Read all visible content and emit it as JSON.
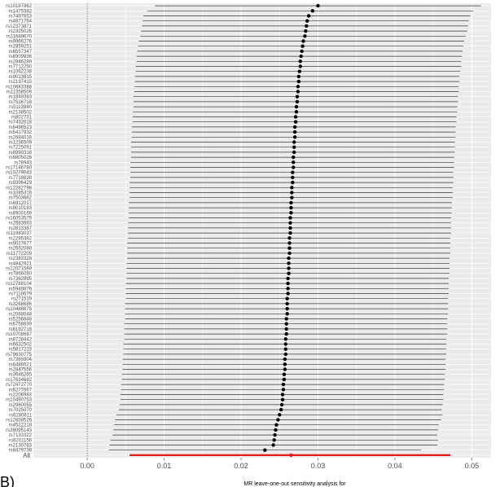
{
  "chart_data": {
    "type": "forest",
    "xlabel": "MR leave-one-out sensitivity analysis for",
    "panel_tag": "B)",
    "xlim": [
      -0.007,
      0.0525
    ],
    "xticks": [
      0.0,
      0.01,
      0.02,
      0.03,
      0.04,
      0.05
    ],
    "xtick_labels": [
      "0.00",
      "0.01",
      "0.02",
      "0.03",
      "0.04",
      "0.05"
    ],
    "reference_line_x": 0,
    "grid": true,
    "point_color": "#000000",
    "line_color": "#333333",
    "overall_color": "#e41a1c",
    "snps": [
      {
        "label": "rs10197862",
        "est": 0.03,
        "lo": 0.0088,
        "hi": 0.0512
      },
      {
        "label": "rs1475382",
        "est": 0.0293,
        "lo": 0.0078,
        "hi": 0.0502
      },
      {
        "label": "rs7497653",
        "est": 0.0288,
        "lo": 0.0073,
        "hi": 0.0498
      },
      {
        "label": "rs4871764",
        "est": 0.0286,
        "lo": 0.0072,
        "hi": 0.0496
      },
      {
        "label": "rs12373871",
        "est": 0.0285,
        "lo": 0.0071,
        "hi": 0.0495
      },
      {
        "label": "rs2325026",
        "est": 0.0284,
        "lo": 0.007,
        "hi": 0.0494
      },
      {
        "label": "rs11689670",
        "est": 0.0283,
        "lo": 0.0069,
        "hi": 0.0492
      },
      {
        "label": "rs9966276",
        "est": 0.0281,
        "lo": 0.0067,
        "hi": 0.049
      },
      {
        "label": "rs2859251",
        "est": 0.028,
        "lo": 0.0066,
        "hi": 0.0489
      },
      {
        "label": "rs6557347",
        "est": 0.0279,
        "lo": 0.0065,
        "hi": 0.0488
      },
      {
        "label": "rs6909936",
        "est": 0.0278,
        "lo": 0.0064,
        "hi": 0.0487
      },
      {
        "label": "rs2846289",
        "est": 0.0277,
        "lo": 0.0064,
        "hi": 0.0486
      },
      {
        "label": "rs7712250",
        "est": 0.0277,
        "lo": 0.0063,
        "hi": 0.0486
      },
      {
        "label": "rs1062238",
        "est": 0.0276,
        "lo": 0.0063,
        "hi": 0.0485
      },
      {
        "label": "rs9013815",
        "est": 0.0275,
        "lo": 0.0062,
        "hi": 0.0484
      },
      {
        "label": "rs2197415",
        "est": 0.0275,
        "lo": 0.0062,
        "hi": 0.0484
      },
      {
        "label": "rs10683388",
        "est": 0.0274,
        "lo": 0.0061,
        "hi": 0.0483
      },
      {
        "label": "rs11358509",
        "est": 0.0274,
        "lo": 0.0061,
        "hi": 0.0483
      },
      {
        "label": "rs1849383",
        "est": 0.0273,
        "lo": 0.006,
        "hi": 0.0482
      },
      {
        "label": "rs7516718",
        "est": 0.0273,
        "lo": 0.006,
        "hi": 0.0482
      },
      {
        "label": "rs5113980",
        "est": 0.0272,
        "lo": 0.006,
        "hi": 0.0481
      },
      {
        "label": "rs2138502",
        "est": 0.0272,
        "lo": 0.0059,
        "hi": 0.0481
      },
      {
        "label": "rs802731",
        "est": 0.0271,
        "lo": 0.0059,
        "hi": 0.048
      },
      {
        "label": "rs7432618",
        "est": 0.0271,
        "lo": 0.0059,
        "hi": 0.048
      },
      {
        "label": "rs8498523",
        "est": 0.027,
        "lo": 0.0058,
        "hi": 0.0479
      },
      {
        "label": "rs5417932",
        "est": 0.027,
        "lo": 0.0058,
        "hi": 0.0479
      },
      {
        "label": "rs2684018",
        "est": 0.027,
        "lo": 0.0058,
        "hi": 0.0479
      },
      {
        "label": "rs1236509",
        "est": 0.0269,
        "lo": 0.0057,
        "hi": 0.0478
      },
      {
        "label": "rs7225091",
        "est": 0.0269,
        "lo": 0.0057,
        "hi": 0.0478
      },
      {
        "label": "rs8990318",
        "est": 0.0269,
        "lo": 0.0057,
        "hi": 0.0478
      },
      {
        "label": "rs6805026",
        "est": 0.0268,
        "lo": 0.0057,
        "hi": 0.0477
      },
      {
        "label": "rs78943",
        "est": 0.0268,
        "lo": 0.0056,
        "hi": 0.0477
      },
      {
        "label": "rs17146780",
        "est": 0.0268,
        "lo": 0.0056,
        "hi": 0.0477
      },
      {
        "label": "rs10279043",
        "est": 0.0267,
        "lo": 0.0056,
        "hi": 0.0476
      },
      {
        "label": "rs7718838",
        "est": 0.0267,
        "lo": 0.0056,
        "hi": 0.0476
      },
      {
        "label": "rs9396429",
        "est": 0.0267,
        "lo": 0.0055,
        "hi": 0.0476
      },
      {
        "label": "rs12282798",
        "est": 0.0266,
        "lo": 0.0055,
        "hi": 0.0475
      },
      {
        "label": "rs1085316",
        "est": 0.0266,
        "lo": 0.0055,
        "hi": 0.0475
      },
      {
        "label": "rs7503662",
        "est": 0.0266,
        "lo": 0.0055,
        "hi": 0.0475
      },
      {
        "label": "rs6912017",
        "est": 0.0265,
        "lo": 0.0054,
        "hi": 0.0474
      },
      {
        "label": "rs9010183",
        "est": 0.0265,
        "lo": 0.0054,
        "hi": 0.0474
      },
      {
        "label": "rs8900169",
        "est": 0.0265,
        "lo": 0.0054,
        "hi": 0.0474
      },
      {
        "label": "rs16053575",
        "est": 0.0264,
        "lo": 0.0054,
        "hi": 0.0473
      },
      {
        "label": "rs2663663",
        "est": 0.0264,
        "lo": 0.0053,
        "hi": 0.0473
      },
      {
        "label": "rs2813387",
        "est": 0.0264,
        "lo": 0.0053,
        "hi": 0.0473
      },
      {
        "label": "rs11983037",
        "est": 0.0264,
        "lo": 0.0053,
        "hi": 0.0473
      },
      {
        "label": "rs2285382",
        "est": 0.0263,
        "lo": 0.0053,
        "hi": 0.0472
      },
      {
        "label": "rs9027677",
        "est": 0.0263,
        "lo": 0.0052,
        "hi": 0.0472
      },
      {
        "label": "rs2652088",
        "est": 0.0263,
        "lo": 0.0052,
        "hi": 0.0472
      },
      {
        "label": "rs11772209",
        "est": 0.0263,
        "lo": 0.0052,
        "hi": 0.0472
      },
      {
        "label": "rs2383328",
        "est": 0.0262,
        "lo": 0.0052,
        "hi": 0.0471
      },
      {
        "label": "rs4842921",
        "est": 0.0262,
        "lo": 0.0051,
        "hi": 0.0471
      },
      {
        "label": "rs12071569",
        "est": 0.0262,
        "lo": 0.0051,
        "hi": 0.0471
      },
      {
        "label": "rs7866060",
        "est": 0.0262,
        "lo": 0.0051,
        "hi": 0.0471
      },
      {
        "label": "rs7362895",
        "est": 0.0261,
        "lo": 0.0051,
        "hi": 0.047
      },
      {
        "label": "rs12788104",
        "est": 0.0261,
        "lo": 0.005,
        "hi": 0.047
      },
      {
        "label": "rs5949876",
        "est": 0.0261,
        "lo": 0.005,
        "hi": 0.047
      },
      {
        "label": "rs7118679",
        "est": 0.0261,
        "lo": 0.005,
        "hi": 0.047
      },
      {
        "label": "rs271519",
        "est": 0.026,
        "lo": 0.005,
        "hi": 0.0469
      },
      {
        "label": "rs3268686",
        "est": 0.026,
        "lo": 0.0049,
        "hi": 0.0469
      },
      {
        "label": "rs10488678",
        "est": 0.026,
        "lo": 0.0049,
        "hi": 0.0469
      },
      {
        "label": "rs2068048",
        "est": 0.026,
        "lo": 0.0049,
        "hi": 0.0469
      },
      {
        "label": "rs5256848",
        "est": 0.0259,
        "lo": 0.0049,
        "hi": 0.0468
      },
      {
        "label": "rs6758639",
        "est": 0.0259,
        "lo": 0.0048,
        "hi": 0.0468
      },
      {
        "label": "rs6192718",
        "est": 0.0259,
        "lo": 0.0048,
        "hi": 0.0468
      },
      {
        "label": "rs10708687",
        "est": 0.0259,
        "lo": 0.0048,
        "hi": 0.0468
      },
      {
        "label": "rs8728442",
        "est": 0.0258,
        "lo": 0.0048,
        "hi": 0.0467
      },
      {
        "label": "rs6632502",
        "est": 0.0258,
        "lo": 0.0047,
        "hi": 0.0467
      },
      {
        "label": "rs5817223",
        "est": 0.0258,
        "lo": 0.0047,
        "hi": 0.0467
      },
      {
        "label": "rs79630775",
        "est": 0.0258,
        "lo": 0.0047,
        "hi": 0.0467
      },
      {
        "label": "rs7365904",
        "est": 0.0257,
        "lo": 0.0046,
        "hi": 0.0466
      },
      {
        "label": "rs6486021",
        "est": 0.0257,
        "lo": 0.0046,
        "hi": 0.0466
      },
      {
        "label": "rs2847556",
        "est": 0.0257,
        "lo": 0.0046,
        "hi": 0.0466
      },
      {
        "label": "rs3646265",
        "est": 0.0256,
        "lo": 0.0045,
        "hi": 0.0465
      },
      {
        "label": "rs17634682",
        "est": 0.0256,
        "lo": 0.0045,
        "hi": 0.0465
      },
      {
        "label": "rs72472770",
        "est": 0.0255,
        "lo": 0.0044,
        "hi": 0.0464
      },
      {
        "label": "rs6277667",
        "est": 0.0255,
        "lo": 0.0044,
        "hi": 0.0464
      },
      {
        "label": "rs2206983",
        "est": 0.0254,
        "lo": 0.0043,
        "hi": 0.0463
      },
      {
        "label": "rs10490753",
        "est": 0.0254,
        "lo": 0.0043,
        "hi": 0.0463
      },
      {
        "label": "rs2960055",
        "est": 0.0253,
        "lo": 0.0042,
        "hi": 0.0462
      },
      {
        "label": "rs7025070",
        "est": 0.0252,
        "lo": 0.0041,
        "hi": 0.0461
      },
      {
        "label": "rs6280611",
        "est": 0.025,
        "lo": 0.0038,
        "hi": 0.0462
      },
      {
        "label": "rs12838526",
        "est": 0.0248,
        "lo": 0.0036,
        "hi": 0.046
      },
      {
        "label": "rs4522218",
        "est": 0.0246,
        "lo": 0.0035,
        "hi": 0.0457
      },
      {
        "label": "rs38095143",
        "est": 0.0245,
        "lo": 0.0034,
        "hi": 0.0456
      },
      {
        "label": "rs7133322",
        "est": 0.0244,
        "lo": 0.0033,
        "hi": 0.0455
      },
      {
        "label": "rs6201156",
        "est": 0.0243,
        "lo": 0.003,
        "hi": 0.0456
      },
      {
        "label": "rs2130783",
        "est": 0.0242,
        "lo": 0.0029,
        "hi": 0.0455
      },
      {
        "label": "rs8479738",
        "est": 0.0231,
        "lo": 0.0028,
        "hi": 0.0434
      }
    ],
    "overall": {
      "label": "All",
      "est": 0.0265,
      "lo": 0.0055,
      "hi": 0.0472
    }
  }
}
